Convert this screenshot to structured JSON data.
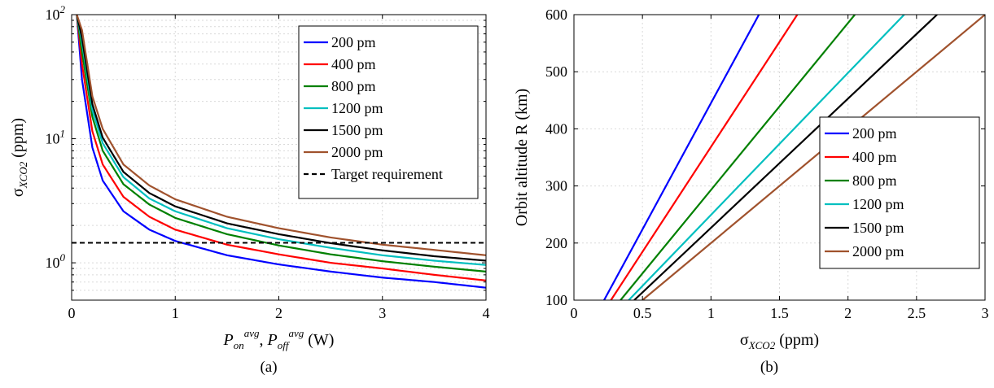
{
  "chart_data": [
    {
      "type": "line",
      "panel_label": "(a)",
      "x_scale": "linear",
      "y_scale": "log",
      "xlim": [
        0,
        4
      ],
      "ylim": [
        0.5,
        100
      ],
      "x_ticks": [
        {
          "value": 0,
          "label": "0"
        },
        {
          "value": 1,
          "label": "1"
        },
        {
          "value": 2,
          "label": "2"
        },
        {
          "value": 3,
          "label": "3"
        },
        {
          "value": 4,
          "label": "4"
        }
      ],
      "y_ticks": [
        {
          "value": 1,
          "base": "10",
          "exp": "0"
        },
        {
          "value": 10,
          "base": "10",
          "exp": "1"
        },
        {
          "value": 100,
          "base": "10",
          "exp": "2"
        }
      ],
      "xlabel": {
        "p": "P",
        "on": "on",
        "avg1": "avg",
        "comma": ", ",
        "p2": "P",
        "off": "off",
        "avg2": "avg",
        "unit": " (W)"
      },
      "ylabel": {
        "sigma": "σ",
        "sub": "XCO2",
        "unit": " (ppm)"
      },
      "grid": true,
      "legend_position": "top-right",
      "series": [
        {
          "name": "200 pm",
          "color": "#0000ff",
          "x": [
            0.05,
            0.1,
            0.2,
            0.3,
            0.5,
            0.75,
            1.0,
            1.5,
            2.0,
            2.5,
            3.0,
            3.5,
            4.0
          ],
          "y": [
            100,
            30,
            8.5,
            4.6,
            2.6,
            1.85,
            1.5,
            1.15,
            0.97,
            0.85,
            0.76,
            0.7,
            0.63
          ]
        },
        {
          "name": "400 pm",
          "color": "#ff0000",
          "x": [
            0.05,
            0.1,
            0.2,
            0.3,
            0.5,
            0.75,
            1.0,
            1.5,
            2.0,
            2.5,
            3.0,
            3.5,
            4.0
          ],
          "y": [
            100,
            40,
            11.5,
            6.2,
            3.4,
            2.35,
            1.85,
            1.4,
            1.17,
            1.0,
            0.9,
            0.8,
            0.72
          ]
        },
        {
          "name": "800 pm",
          "color": "#008000",
          "x": [
            0.05,
            0.1,
            0.2,
            0.3,
            0.5,
            0.75,
            1.0,
            1.5,
            2.0,
            2.5,
            3.0,
            3.5,
            4.0
          ],
          "y": [
            100,
            50,
            15,
            8.0,
            4.3,
            2.95,
            2.3,
            1.7,
            1.38,
            1.17,
            1.03,
            0.93,
            0.85
          ]
        },
        {
          "name": "1200 pm",
          "color": "#00bfbf",
          "x": [
            0.05,
            0.1,
            0.2,
            0.3,
            0.5,
            0.75,
            1.0,
            1.5,
            2.0,
            2.5,
            3.0,
            3.5,
            4.0
          ],
          "y": [
            100,
            60,
            17,
            9.2,
            4.9,
            3.3,
            2.6,
            1.9,
            1.55,
            1.32,
            1.15,
            1.04,
            0.96
          ]
        },
        {
          "name": "1500 pm",
          "color": "#000000",
          "x": [
            0.05,
            0.1,
            0.2,
            0.3,
            0.5,
            0.75,
            1.0,
            1.5,
            2.0,
            2.5,
            3.0,
            3.5,
            4.0
          ],
          "y": [
            100,
            65,
            19,
            10.2,
            5.4,
            3.65,
            2.85,
            2.08,
            1.7,
            1.44,
            1.26,
            1.13,
            1.04
          ]
        },
        {
          "name": "2000 pm",
          "color": "#a0522d",
          "x": [
            0.05,
            0.1,
            0.2,
            0.3,
            0.5,
            0.75,
            1.0,
            1.5,
            2.0,
            2.5,
            3.0,
            3.5,
            4.0
          ],
          "y": [
            100,
            75,
            22,
            12,
            6.2,
            4.2,
            3.25,
            2.35,
            1.9,
            1.6,
            1.4,
            1.27,
            1.15
          ]
        }
      ],
      "reference_lines": [
        {
          "name": "Target requirement",
          "y": 1.45,
          "style": "dashed",
          "color": "#000000"
        }
      ]
    },
    {
      "type": "line",
      "panel_label": "(b)",
      "x_scale": "linear",
      "y_scale": "linear",
      "xlim": [
        0,
        3
      ],
      "ylim": [
        100,
        600
      ],
      "x_ticks": [
        {
          "value": 0,
          "label": "0"
        },
        {
          "value": 0.5,
          "label": "0.5"
        },
        {
          "value": 1,
          "label": "1"
        },
        {
          "value": 1.5,
          "label": "1.5"
        },
        {
          "value": 2,
          "label": "2"
        },
        {
          "value": 2.5,
          "label": "2.5"
        },
        {
          "value": 3,
          "label": "3"
        }
      ],
      "y_ticks": [
        {
          "value": 100,
          "label": "100"
        },
        {
          "value": 200,
          "label": "200"
        },
        {
          "value": 300,
          "label": "300"
        },
        {
          "value": 400,
          "label": "400"
        },
        {
          "value": 500,
          "label": "500"
        },
        {
          "value": 600,
          "label": "600"
        }
      ],
      "xlabel": {
        "sigma": "σ",
        "sub": "XCO2",
        "unit": " (ppm)"
      },
      "ylabel": "Orbit altitude R (km)",
      "grid": true,
      "legend_position": "right",
      "series": [
        {
          "name": "200 pm",
          "color": "#0000ff",
          "x": [
            0.22,
            1.35
          ],
          "y": [
            100,
            600
          ]
        },
        {
          "name": "400 pm",
          "color": "#ff0000",
          "x": [
            0.27,
            1.63
          ],
          "y": [
            100,
            600
          ]
        },
        {
          "name": "800 pm",
          "color": "#008000",
          "x": [
            0.34,
            2.05
          ],
          "y": [
            100,
            600
          ]
        },
        {
          "name": "1200 pm",
          "color": "#00bfbf",
          "x": [
            0.4,
            2.41
          ],
          "y": [
            100,
            600
          ]
        },
        {
          "name": "1500 pm",
          "color": "#000000",
          "x": [
            0.44,
            2.65
          ],
          "y": [
            100,
            600
          ]
        },
        {
          "name": "2000 pm",
          "color": "#a0522d",
          "x": [
            0.5,
            3.0
          ],
          "y": [
            100,
            600
          ]
        }
      ]
    }
  ]
}
